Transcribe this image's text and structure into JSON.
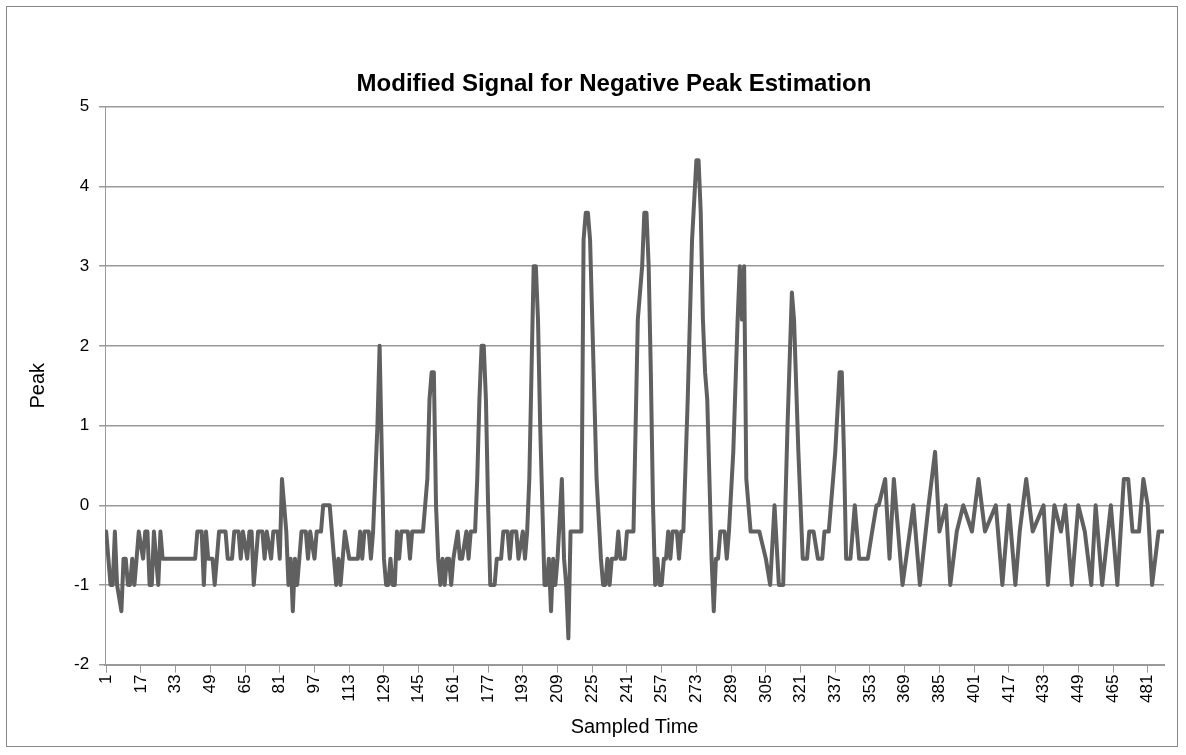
{
  "chart_data": {
    "type": "line",
    "title": "Modified Signal for Negative Peak Estimation",
    "xlabel": "Sampled Time",
    "ylabel": "Peak",
    "xlim": [
      0.5,
      488.5
    ],
    "xticks": [
      1,
      17,
      33,
      49,
      65,
      81,
      97,
      113,
      129,
      145,
      161,
      177,
      193,
      209,
      225,
      241,
      257,
      273,
      289,
      305,
      321,
      337,
      353,
      369,
      385,
      401,
      417,
      433,
      449,
      465,
      481
    ],
    "ylim": [
      -2,
      5
    ],
    "yticks": [
      -2,
      -1,
      0,
      1,
      2,
      3,
      4,
      5
    ],
    "grid": "y",
    "legend": false,
    "marker": "none",
    "line_style": "solid",
    "series": [
      {
        "color": "#606060",
        "x": [
          1,
          2,
          3,
          4,
          5,
          6,
          8,
          9,
          10,
          11,
          12,
          13,
          14,
          15,
          16,
          18,
          19,
          20,
          21,
          22,
          23,
          24,
          25,
          26,
          27,
          29,
          42,
          43,
          45,
          46,
          47,
          48,
          50,
          51,
          52,
          53,
          56,
          57,
          59,
          60,
          62,
          63,
          64,
          66,
          67,
          68,
          69,
          70,
          71,
          73,
          74,
          75,
          77,
          78,
          80,
          81,
          82,
          83,
          84,
          85,
          86,
          87,
          88,
          89,
          90,
          91,
          93,
          94,
          95,
          97,
          98,
          100,
          101,
          104,
          106,
          107,
          108,
          109,
          110,
          111,
          113,
          117,
          118,
          119,
          120,
          122,
          123,
          124,
          126,
          127,
          128,
          129,
          130,
          131,
          132,
          133,
          134,
          135,
          136,
          137,
          140,
          141,
          142,
          145,
          147,
          149,
          150,
          151,
          152,
          153,
          154,
          155,
          156,
          157,
          158,
          159,
          160,
          161,
          163,
          164,
          165,
          167,
          168,
          169,
          171,
          172,
          173,
          174,
          175,
          176,
          177,
          178,
          179,
          180,
          181,
          183,
          184,
          186,
          187,
          188,
          190,
          191,
          193,
          194,
          195,
          196,
          197,
          198,
          199,
          200,
          201,
          202,
          203,
          204,
          205,
          206,
          207,
          208,
          209,
          211,
          212,
          213,
          214,
          215,
          218,
          220,
          221,
          222,
          223,
          224,
          225,
          227,
          229,
          230,
          231,
          232,
          233,
          234,
          236,
          237,
          238,
          240,
          241,
          244,
          245,
          246,
          248,
          249,
          250,
          251,
          252,
          253,
          254,
          255,
          256,
          257,
          258,
          259,
          260,
          261,
          262,
          264,
          265,
          266,
          267,
          269,
          271,
          273,
          274,
          275,
          276,
          277,
          278,
          280,
          281,
          282,
          283,
          284,
          286,
          287,
          288,
          290,
          292,
          293,
          294,
          295,
          296,
          298,
          300,
          302,
          305,
          307,
          309,
          311,
          313,
          315,
          317,
          318,
          320,
          322,
          324,
          325,
          327,
          329,
          331,
          332,
          334,
          336,
          337,
          339,
          340,
          341,
          342,
          344,
          346,
          348,
          350,
          352,
          354,
          356,
          357,
          360,
          362,
          364,
          368,
          373,
          376,
          380,
          383,
          385,
          388,
          390,
          393,
          396,
          400,
          403,
          406,
          411,
          414,
          417,
          420,
          422,
          425,
          428,
          433,
          435,
          438,
          441,
          443,
          446,
          449,
          452,
          455,
          457,
          460,
          464,
          467,
          470,
          472,
          474,
          477,
          479,
          481,
          483,
          486,
          488
        ],
        "values": [
          -0.33,
          -0.67,
          -1,
          -1,
          -0.33,
          -1,
          -1.33,
          -0.67,
          -0.67,
          -1,
          -1,
          -0.67,
          -1,
          -0.67,
          -0.33,
          -0.67,
          -0.33,
          -0.33,
          -1,
          -1,
          -0.33,
          -0.67,
          -1,
          -0.33,
          -0.67,
          -0.67,
          -0.67,
          -0.33,
          -0.33,
          -1,
          -0.33,
          -0.67,
          -0.67,
          -1,
          -0.67,
          -0.33,
          -0.33,
          -0.67,
          -0.67,
          -0.33,
          -0.33,
          -0.67,
          -0.33,
          -0.67,
          -0.33,
          -0.33,
          -1,
          -0.67,
          -0.33,
          -0.33,
          -0.67,
          -0.33,
          -0.67,
          -0.33,
          -0.33,
          -0.67,
          0.33,
          0,
          -0.33,
          -1,
          -0.67,
          -1.33,
          -0.67,
          -1,
          -0.67,
          -0.33,
          -0.33,
          -0.67,
          -0.33,
          -0.67,
          -0.33,
          -0.33,
          0,
          0,
          -0.67,
          -1,
          -0.67,
          -1,
          -0.67,
          -0.33,
          -0.67,
          -0.67,
          -0.33,
          -0.67,
          -0.33,
          -0.33,
          -0.67,
          -0.33,
          1,
          2,
          0.67,
          -0.67,
          -1,
          -1,
          -0.67,
          -1,
          -1,
          -0.33,
          -0.67,
          -0.33,
          -0.33,
          -0.67,
          -0.33,
          -0.33,
          -0.33,
          0.33,
          1.33,
          1.67,
          1.67,
          0,
          -0.67,
          -1,
          -0.67,
          -1,
          -0.67,
          -0.67,
          -1,
          -0.67,
          -0.33,
          -0.67,
          -0.67,
          -0.33,
          -0.67,
          -0.33,
          -0.33,
          0.33,
          1.33,
          2,
          2,
          1.33,
          0,
          -1,
          -1,
          -1,
          -0.67,
          -0.67,
          -0.33,
          -0.33,
          -0.67,
          -0.33,
          -0.33,
          -0.67,
          -0.33,
          -0.67,
          -0.33,
          0.33,
          1.67,
          3,
          3,
          2.33,
          1,
          0,
          -1,
          -1,
          -0.67,
          -1.33,
          -0.67,
          -1,
          -0.67,
          0.33,
          -0.67,
          -1,
          -1.67,
          -0.33,
          -0.33,
          -0.33,
          3.33,
          3.67,
          3.67,
          3.33,
          2.33,
          0.33,
          -0.67,
          -1,
          -1,
          -0.67,
          -1,
          -0.67,
          -0.67,
          -0.33,
          -0.67,
          -0.67,
          -0.33,
          -0.33,
          1,
          2.33,
          3,
          3.67,
          3.67,
          3,
          1.67,
          0,
          -1,
          -0.67,
          -1,
          -1,
          -0.67,
          -0.67,
          -0.33,
          -0.67,
          -0.33,
          -0.33,
          -0.67,
          -0.33,
          -0.33,
          1.33,
          3.33,
          4.33,
          4.33,
          3.67,
          2.33,
          1.67,
          1.33,
          -0.67,
          -1.33,
          -0.67,
          -0.67,
          -0.33,
          -0.33,
          -0.67,
          -0.33,
          0.67,
          2.33,
          3,
          2.33,
          3,
          0.33,
          -0.33,
          -0.33,
          -0.33,
          -0.67,
          -1,
          0,
          -1,
          -1,
          1,
          2.67,
          2.33,
          0.67,
          -0.67,
          -0.67,
          -0.33,
          -0.33,
          -0.67,
          -0.67,
          -0.33,
          -0.33,
          0.33,
          0.67,
          1.67,
          1.67,
          0.67,
          -0.67,
          -0.67,
          0,
          -0.67,
          -0.67,
          -0.67,
          -0.33,
          0,
          0,
          0.33,
          -0.67,
          0.33,
          -1,
          0,
          -1,
          0,
          0.67,
          -0.33,
          0,
          -1,
          -0.33,
          0,
          -0.33,
          0.33,
          -0.33,
          0,
          -1,
          0,
          -1,
          -0.33,
          0.33,
          -0.33,
          0,
          -1,
          0,
          -0.33,
          0,
          -1,
          0,
          -0.33,
          -1,
          0,
          -1,
          0,
          -1,
          0.33,
          0.33,
          -0.33,
          -0.33,
          0.33,
          0,
          -1,
          -0.33,
          -0.33
        ]
      }
    ]
  }
}
